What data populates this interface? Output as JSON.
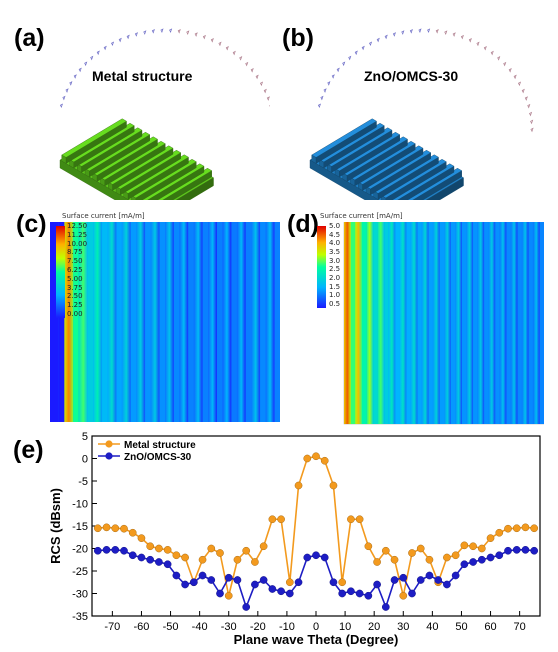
{
  "panels": {
    "a": {
      "label": "(a)",
      "title": "Metal structure",
      "color": "#5cc51c"
    },
    "b": {
      "label": "(b)",
      "title": "ZnO/OMCS-30",
      "color": "#1f7fc4"
    },
    "c": {
      "label": "(c)",
      "colorbar_title": "Surface current [mA/m]",
      "colorbar_ticks": [
        "12.50",
        "11.25",
        "10.00",
        "8.75",
        "7.50",
        "6.25",
        "5.00",
        "3.75",
        "2.50",
        "1.25",
        "0.00"
      ]
    },
    "d": {
      "label": "(d)",
      "colorbar_title": "Surface current [mA/m]",
      "colorbar_ticks": [
        "5.0",
        "4.5",
        "4.0",
        "3.5",
        "3.0",
        "2.5",
        "2.0",
        "1.5",
        "1.0",
        "0.5"
      ]
    },
    "e": {
      "label": "(e)"
    }
  },
  "chart_data": {
    "type": "line",
    "xlabel": "Plane wave Theta (Degree)",
    "ylabel": "RCS (dBsm)",
    "xlim": [
      -77,
      77
    ],
    "ylim": [
      -35,
      5
    ],
    "xticks": [
      -70,
      -60,
      -50,
      -40,
      -30,
      -20,
      -10,
      0,
      10,
      20,
      30,
      40,
      50,
      60,
      70
    ],
    "yticks": [
      5,
      0,
      -5,
      -10,
      -15,
      -20,
      -25,
      -30,
      -35
    ],
    "legend_position": "top-left",
    "x": [
      -75,
      -72,
      -69,
      -66,
      -63,
      -60,
      -57,
      -54,
      -51,
      -48,
      -45,
      -42,
      -39,
      -36,
      -33,
      -30,
      -27,
      -24,
      -21,
      -18,
      -15,
      -12,
      -9,
      -6,
      -3,
      0,
      3,
      6,
      9,
      12,
      15,
      18,
      21,
      24,
      27,
      30,
      33,
      36,
      39,
      42,
      45,
      48,
      51,
      54,
      57,
      60,
      63,
      66,
      69,
      72,
      75
    ],
    "series": [
      {
        "name": "Metal structure",
        "color": "#f39a1e",
        "values": [
          -15.5,
          -15.3,
          -15.5,
          -15.6,
          -16.5,
          -17.7,
          -19.5,
          -20.0,
          -20.3,
          -21.5,
          -22.0,
          -27.5,
          -22.5,
          -20.0,
          -21.0,
          -30.5,
          -22.5,
          -20.5,
          -23.0,
          -19.5,
          -13.5,
          -13.5,
          -27.5,
          -6.0,
          0.0,
          0.5,
          -0.5,
          -6.0,
          -27.5,
          -13.5,
          -13.5,
          -19.5,
          -23.0,
          -20.5,
          -22.5,
          -30.5,
          -21.0,
          -20.0,
          -22.5,
          -27.5,
          -22.0,
          -21.5,
          -19.3,
          -19.5,
          -20.0,
          -17.7,
          -16.5,
          -15.6,
          -15.5,
          -15.3,
          -15.5
        ]
      },
      {
        "name": "ZnO/OMCS-30",
        "color": "#1d1dc4",
        "values": [
          -20.5,
          -20.3,
          -20.3,
          -20.5,
          -21.5,
          -22.0,
          -22.5,
          -23.0,
          -23.5,
          -26.0,
          -28.0,
          -27.5,
          -26.0,
          -27.0,
          -30.0,
          -26.5,
          -27.0,
          -33.0,
          -28.0,
          -27.0,
          -29.0,
          -29.5,
          -30.0,
          -27.5,
          -22.0,
          -21.5,
          -22.0,
          -27.5,
          -30.0,
          -29.5,
          -30.0,
          -30.5,
          -28.0,
          -33.0,
          -27.0,
          -26.5,
          -30.0,
          -27.0,
          -26.0,
          -27.0,
          -28.0,
          -26.0,
          -23.5,
          -23.0,
          -22.5,
          -22.0,
          -21.5,
          -20.5,
          -20.3,
          -20.3,
          -20.5
        ]
      }
    ]
  }
}
